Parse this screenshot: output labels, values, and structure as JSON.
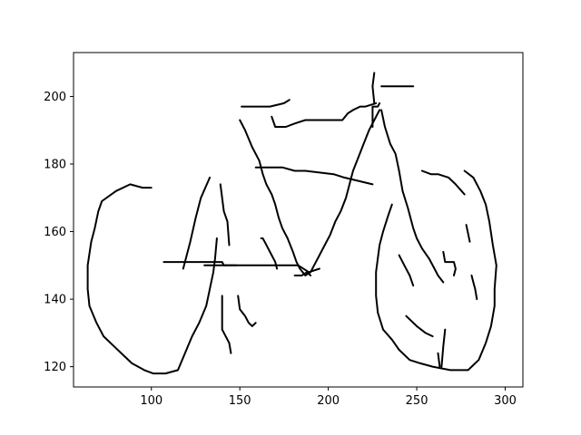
{
  "chart_data": {
    "type": "line",
    "title": "",
    "xlabel": "",
    "ylabel": "",
    "xlim": [
      56,
      310
    ],
    "ylim": [
      114,
      213
    ],
    "grid": false,
    "legend": "none",
    "line_color": "#000000",
    "x_ticks": [
      100,
      150,
      200,
      250,
      300
    ],
    "y_ticks": [
      120,
      140,
      160,
      180,
      200
    ],
    "x_tick_labels": [
      "100",
      "150",
      "200",
      "250",
      "300"
    ],
    "y_tick_labels": [
      "120",
      "140",
      "160",
      "180",
      "200"
    ],
    "series": [
      {
        "points": [
          [
            159,
            179
          ],
          [
            174,
            179
          ],
          [
            181,
            178
          ],
          [
            187,
            178
          ],
          [
            203,
            177
          ],
          [
            209,
            176
          ],
          [
            217,
            175
          ],
          [
            225,
            174
          ]
        ]
      },
      {
        "points": [
          [
            100,
            173
          ],
          [
            95,
            173
          ],
          [
            88,
            174
          ],
          [
            80,
            172
          ],
          [
            72,
            169
          ],
          [
            70,
            166
          ],
          [
            68,
            161
          ],
          [
            66,
            157
          ],
          [
            64,
            150
          ],
          [
            64,
            143
          ],
          [
            65,
            138
          ],
          [
            69,
            133
          ],
          [
            73,
            129
          ],
          [
            79,
            126
          ],
          [
            85,
            123
          ],
          [
            89,
            121
          ],
          [
            96,
            119
          ],
          [
            101,
            118
          ],
          [
            108,
            118
          ],
          [
            115,
            119
          ],
          [
            119,
            124
          ],
          [
            123,
            129
          ],
          [
            127,
            133
          ],
          [
            131,
            138
          ],
          [
            133,
            143
          ],
          [
            135,
            148
          ],
          [
            136,
            152
          ],
          [
            137,
            158
          ]
        ]
      },
      {
        "points": [
          [
            133,
            176
          ],
          [
            128,
            170
          ],
          [
            125,
            164
          ],
          [
            122,
            157
          ],
          [
            120,
            153
          ],
          [
            118,
            149
          ]
        ]
      },
      {
        "points": [
          [
            139,
            174
          ],
          [
            141,
            166
          ],
          [
            143,
            163
          ],
          [
            144,
            156
          ]
        ]
      },
      {
        "points": [
          [
            130,
            150
          ],
          [
            148,
            150
          ]
        ]
      },
      {
        "points": [
          [
            162,
            158
          ],
          [
            163,
            158
          ],
          [
            164,
            157
          ],
          [
            166,
            155
          ],
          [
            168,
            153
          ],
          [
            170,
            151
          ],
          [
            171,
            149
          ]
        ]
      },
      {
        "points": [
          [
            181,
            147
          ],
          [
            185,
            147
          ],
          [
            188,
            148
          ],
          [
            190,
            147
          ]
        ]
      },
      {
        "points": [
          [
            140,
            141
          ],
          [
            140,
            131
          ],
          [
            142,
            129
          ],
          [
            144,
            127
          ],
          [
            145,
            124
          ]
        ]
      },
      {
        "points": [
          [
            149,
            141
          ],
          [
            150,
            137
          ],
          [
            153,
            135
          ],
          [
            155,
            133
          ],
          [
            157,
            132
          ],
          [
            159,
            133
          ]
        ]
      },
      {
        "points": [
          [
            107,
            151
          ],
          [
            140,
            151
          ],
          [
            141,
            150
          ],
          [
            181,
            150
          ],
          [
            183,
            150
          ],
          [
            189,
            148
          ],
          [
            195,
            149
          ]
        ]
      },
      {
        "points": [
          [
            150,
            193
          ],
          [
            153,
            190
          ],
          [
            157,
            185
          ],
          [
            161,
            181
          ],
          [
            163,
            177
          ],
          [
            165,
            174
          ],
          [
            168,
            171
          ],
          [
            170,
            168
          ],
          [
            172,
            164
          ],
          [
            174,
            161
          ],
          [
            177,
            158
          ],
          [
            180,
            154
          ],
          [
            182,
            151
          ],
          [
            184,
            149
          ],
          [
            187,
            147
          ],
          [
            190,
            148
          ],
          [
            192,
            150
          ],
          [
            195,
            153
          ],
          [
            198,
            156
          ],
          [
            201,
            159
          ],
          [
            204,
            163
          ],
          [
            207,
            166
          ],
          [
            210,
            170
          ],
          [
            212,
            174
          ],
          [
            214,
            178
          ],
          [
            217,
            182
          ],
          [
            220,
            186
          ],
          [
            223,
            190
          ],
          [
            226,
            193
          ],
          [
            229,
            196
          ]
        ]
      },
      {
        "points": [
          [
            151,
            197
          ],
          [
            167,
            197
          ],
          [
            175,
            198
          ],
          [
            178,
            199
          ]
        ]
      },
      {
        "points": [
          [
            168,
            194
          ],
          [
            170,
            191
          ],
          [
            176,
            191
          ],
          [
            181,
            192
          ],
          [
            187,
            193
          ],
          [
            191,
            193
          ],
          [
            200,
            193
          ],
          [
            208,
            193
          ],
          [
            211,
            195
          ],
          [
            214,
            196
          ],
          [
            218,
            197
          ],
          [
            221,
            197
          ],
          [
            227,
            198
          ]
        ]
      },
      {
        "points": [
          [
            225,
            191
          ],
          [
            225,
            197
          ],
          [
            228,
            197
          ],
          [
            229,
            198
          ]
        ]
      },
      {
        "points": [
          [
            226,
            198
          ],
          [
            225,
            203
          ],
          [
            226,
            207
          ]
        ]
      },
      {
        "points": [
          [
            230,
            203
          ],
          [
            248,
            203
          ]
        ]
      },
      {
        "points": [
          [
            230,
            196
          ],
          [
            232,
            191
          ],
          [
            235,
            186
          ],
          [
            238,
            183
          ],
          [
            240,
            178
          ],
          [
            242,
            172
          ],
          [
            245,
            167
          ],
          [
            248,
            161
          ],
          [
            250,
            158
          ],
          [
            253,
            155
          ],
          [
            257,
            152
          ],
          [
            260,
            149
          ],
          [
            262,
            147
          ],
          [
            265,
            145
          ]
        ]
      },
      {
        "points": [
          [
            253,
            178
          ],
          [
            258,
            177
          ],
          [
            262,
            177
          ],
          [
            268,
            176
          ],
          [
            272,
            174
          ],
          [
            277,
            171
          ]
        ]
      },
      {
        "points": [
          [
            236,
            168
          ],
          [
            234,
            165
          ],
          [
            231,
            160
          ],
          [
            229,
            156
          ],
          [
            227,
            148
          ],
          [
            227,
            141
          ],
          [
            228,
            136
          ],
          [
            231,
            131
          ],
          [
            236,
            128
          ],
          [
            240,
            125
          ],
          [
            246,
            122
          ],
          [
            252,
            121
          ],
          [
            259,
            120
          ],
          [
            269,
            119
          ],
          [
            279,
            119
          ],
          [
            285,
            122
          ],
          [
            289,
            127
          ],
          [
            292,
            132
          ],
          [
            294,
            138
          ],
          [
            294,
            143
          ],
          [
            295,
            150
          ],
          [
            293,
            156
          ],
          [
            291,
            163
          ],
          [
            289,
            168
          ],
          [
            286,
            172
          ],
          [
            282,
            176
          ],
          [
            277,
            178
          ]
        ]
      },
      {
        "points": [
          [
            240,
            153
          ],
          [
            243,
            150
          ],
          [
            246,
            147
          ],
          [
            248,
            144
          ]
        ]
      },
      {
        "points": [
          [
            265,
            154
          ],
          [
            266,
            151
          ],
          [
            271,
            151
          ],
          [
            272,
            149
          ],
          [
            271,
            147
          ]
        ]
      },
      {
        "points": [
          [
            278,
            162
          ],
          [
            280,
            157
          ]
        ]
      },
      {
        "points": [
          [
            281,
            147
          ],
          [
            282,
            145
          ],
          [
            283,
            143
          ],
          [
            284,
            140
          ]
        ]
      },
      {
        "points": [
          [
            244,
            135
          ],
          [
            250,
            132
          ],
          [
            255,
            130
          ],
          [
            259,
            129
          ]
        ]
      },
      {
        "points": [
          [
            266,
            131
          ],
          [
            265,
            126
          ],
          [
            264,
            120
          ]
        ]
      },
      {
        "points": [
          [
            262,
            124
          ],
          [
            263,
            120
          ]
        ]
      }
    ]
  }
}
